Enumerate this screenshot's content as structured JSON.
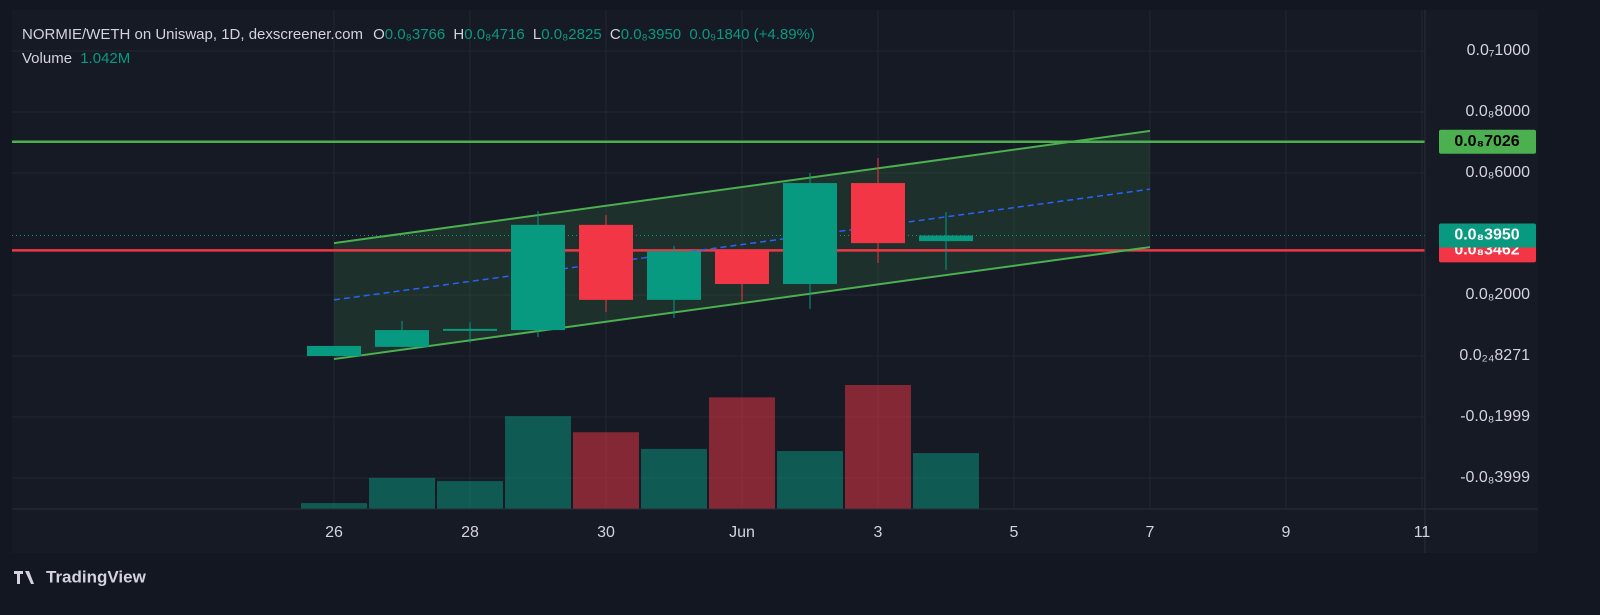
{
  "chart_data": {
    "type": "candlestick",
    "title": "NORMIE/WETH on Uniswap, 1D, dexscreener.com",
    "legend": {
      "open_label": "O",
      "open": "0.0₈3766",
      "high_label": "H",
      "high": "0.0₈4716",
      "low_label": "L",
      "low": "0.0₈2825",
      "close_label": "C",
      "close": "0.0₈3950",
      "change": "0.0₉1840 (+4.89%)",
      "volume_label": "Volume",
      "volume": "1.042M"
    },
    "categories": [
      "26",
      null,
      "28",
      null,
      "30",
      null,
      "Jun",
      null,
      "3",
      null
    ],
    "open": [
      0.0,
      3e-10,
      8.5e-10,
      8.5e-10,
      4.3e-09,
      1.84e-09,
      3.44e-09,
      2.36e-09,
      5.67e-09,
      3.766e-09
    ],
    "high": [
      3.3e-10,
      1.15e-09,
      1.11e-09,
      4.75e-09,
      4.62e-09,
      3.61e-09,
      3.44e-09,
      6e-09,
      6.49e-09,
      4.716e-09
    ],
    "low": [
      0.0,
      3e-10,
      4.3e-10,
      6.2e-10,
      1.44e-09,
      1.25e-09,
      1.8e-09,
      1.54e-09,
      3.05e-09,
      2.825e-09
    ],
    "close": [
      3.3e-10,
      8.5e-10,
      8.9e-10,
      4.3e-09,
      1.84e-09,
      3.44e-09,
      2.36e-09,
      5.67e-09,
      3.7e-09,
      3.95e-09
    ],
    "volume": [
      110000,
      580000,
      520000,
      1730000,
      1430000,
      1120000,
      2080000,
      1080000,
      2310000,
      1042000
    ],
    "up_color": "#089981",
    "down_color": "#f23645",
    "xtick_labels": [
      "26",
      "28",
      "30",
      "Jun",
      "3",
      "5",
      "7",
      "9",
      "11"
    ],
    "ylim": [
      -5.016e-09,
      1.1344e-08
    ],
    "yticks": [
      {
        "value": 1e-08,
        "label": "0.0₇1000"
      },
      {
        "value": 8e-09,
        "label": "0.0₈8000"
      },
      {
        "value": 6e-09,
        "label": "0.0₈6000"
      },
      {
        "value": 2e-09,
        "label": "0.0₈2000"
      },
      {
        "value": 8.271e-25,
        "label": "0.0₂₄8271"
      },
      {
        "value": -1.999e-09,
        "label": "-0.0₈1999"
      },
      {
        "value": -3.999e-09,
        "label": "-0.0₈3999"
      }
    ],
    "grid": true,
    "channel": {
      "color": "#4caf50",
      "upper": [
        3.7e-09,
        7.38e-09
      ],
      "lower": [
        -1e-10,
        3.57e-09
      ],
      "middle": [
        1.84e-09,
        5.47e-09
      ],
      "middle_color": "#2962ff"
    },
    "levels": [
      {
        "value": 7.026e-09,
        "label": "0.0₈7026",
        "color": "#4caf50"
      },
      {
        "value": 3.462e-09,
        "label": "0.0₈3462",
        "color": "#f23645"
      }
    ],
    "last_price": {
      "value": 3.95e-09,
      "label": "0.0₈3950",
      "color": "#089981"
    },
    "brand": "TradingView"
  }
}
